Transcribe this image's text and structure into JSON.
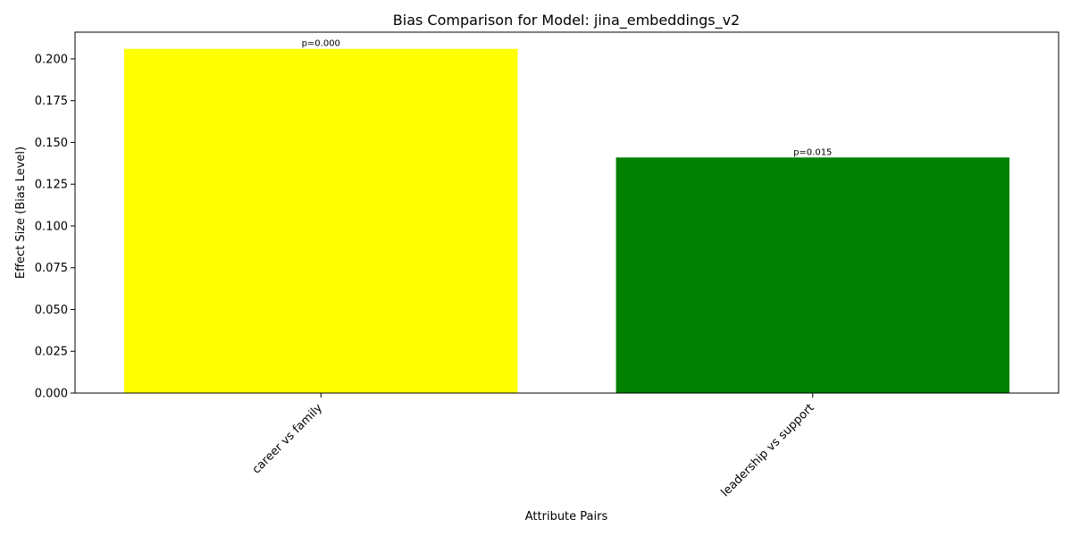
{
  "chart_data": {
    "type": "bar",
    "title": "Bias Comparison for Model: jina_embeddings_v2",
    "xlabel": "Attribute Pairs",
    "ylabel": "Effect Size (Bias Level)",
    "categories": [
      "career vs family",
      "leadership vs support"
    ],
    "values": [
      0.206,
      0.141
    ],
    "bar_colors": [
      "#ffff00",
      "#008000"
    ],
    "data_labels": [
      "p=0.000",
      "p=0.015"
    ],
    "ylim": [
      0,
      0.216
    ],
    "yticks": [
      "0.000",
      "0.025",
      "0.050",
      "0.075",
      "0.100",
      "0.125",
      "0.150",
      "0.175",
      "0.200"
    ],
    "grid": false,
    "legend": false
  }
}
